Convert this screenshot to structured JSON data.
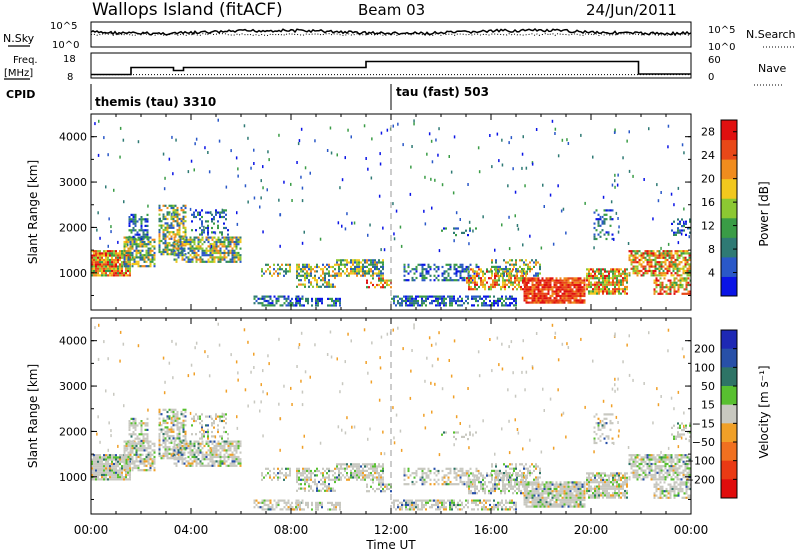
{
  "header": {
    "site": "Wallops Island (fitACF)",
    "beam": "Beam 03",
    "date": "24/Jun/2011"
  },
  "noise_panel": {
    "left_label": "N.Sky",
    "left_ticks": [
      "10^5",
      "10^0"
    ],
    "right_label": "N.Search",
    "right_ticks": [
      "10^5",
      "10^0"
    ]
  },
  "freq_panel": {
    "left_label_1": "Freq.",
    "left_label_2": "[MHz]",
    "left_ticks": [
      "18",
      "8"
    ],
    "right_label": "Nave",
    "right_ticks": [
      "60",
      "0"
    ]
  },
  "cpid_panel": {
    "label": "CPID",
    "modes": [
      {
        "name": "themis (tau) 3310",
        "start_h": 0
      },
      {
        "name": "tau (fast) 503",
        "start_h": 12
      }
    ]
  },
  "colors": {
    "power": [
      "#0a14e6",
      "#2a58c8",
      "#2f7a74",
      "#3a9c46",
      "#8cc832",
      "#f2c81e",
      "#f08c1e",
      "#e84818",
      "#e01010"
    ],
    "velocity": [
      "#1e28b4",
      "#2850a8",
      "#2e7466",
      "#58c030",
      "#c8c8c0",
      "#f0a028",
      "#f07020",
      "#ea3a14",
      "#e00c0c"
    ]
  },
  "chart_data": [
    {
      "type": "line",
      "name": "noise",
      "x_range_h": [
        0,
        24
      ],
      "series_sky_level": 0.6,
      "series_search_level": 0.5
    },
    {
      "type": "line",
      "name": "frequency-nave",
      "x_range_h": [
        0,
        24
      ],
      "frequency_steps": [
        [
          0,
          9.4
        ],
        [
          1.6,
          9.4
        ],
        [
          1.6,
          12.2
        ],
        [
          3.3,
          12.2
        ],
        [
          3.3,
          11.0
        ],
        [
          3.7,
          11.0
        ],
        [
          3.7,
          12.2
        ],
        [
          11.0,
          12.2
        ],
        [
          11.0,
          14.6
        ],
        [
          21.9,
          14.6
        ],
        [
          21.9,
          9.6
        ],
        [
          24,
          9.6
        ]
      ],
      "nave_level": 8
    },
    {
      "type": "heatmap",
      "name": "power",
      "x_range_h": [
        0,
        24
      ],
      "x_ticks": [
        "00:00",
        "04:00",
        "08:00",
        "12:00",
        "16:00",
        "20:00",
        "00:00"
      ],
      "ylabel": "Slant Range [km]",
      "ylim_km": [
        180,
        4500
      ],
      "y_ticks": [
        1000,
        2000,
        3000,
        4000
      ],
      "colorbar": {
        "label": "Power [dB]",
        "ticks": [
          4,
          8,
          12,
          16,
          20,
          24,
          28
        ],
        "range": [
          0,
          30
        ]
      }
    },
    {
      "type": "heatmap",
      "name": "velocity",
      "x_range_h": [
        0,
        24
      ],
      "x_ticks": [
        "00:00",
        "04:00",
        "08:00",
        "12:00",
        "16:00",
        "20:00",
        "00:00"
      ],
      "xlabel": "Time UT",
      "ylabel": "Slant Range [km]",
      "ylim_km": [
        180,
        4500
      ],
      "y_ticks": [
        1000,
        2000,
        3000,
        4000
      ],
      "colorbar": {
        "label": "Velocity [m s⁻¹]",
        "ticks": [
          "200",
          "100",
          "50",
          "15",
          "−15",
          "−50",
          "−100",
          "−200"
        ]
      }
    }
  ]
}
